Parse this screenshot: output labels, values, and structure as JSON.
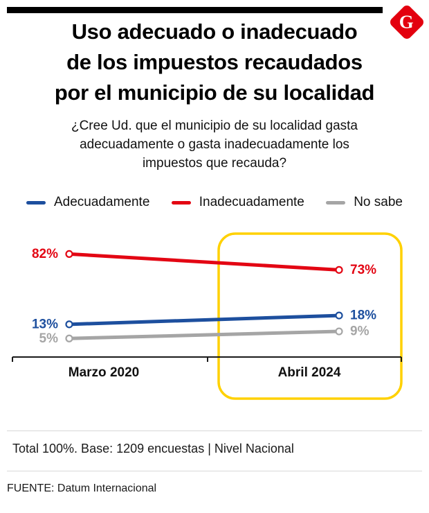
{
  "page": {
    "background": "#ffffff",
    "accent_bar_color": "#000000"
  },
  "logo": {
    "letter": "G",
    "color": "#e3000f"
  },
  "header": {
    "title_lines": [
      "Uso adecuado o inadecuado",
      "de los impuestos recaudados",
      "por el municipio de su localidad"
    ],
    "subtitle_lines": [
      "¿Cree Ud. que el municipio de su localidad gasta",
      "adecuadamente o gasta inadecuadamente los",
      "impuestos que recauda?"
    ]
  },
  "legend": {
    "items": [
      {
        "label": "Adecuadamente",
        "color": "#1d4f9e"
      },
      {
        "label": "Inadecuadamente",
        "color": "#e30613"
      },
      {
        "label": "No sabe",
        "color": "#a5a5a5"
      }
    ]
  },
  "chart_data": {
    "type": "line",
    "title": "Uso adecuado o inadecuado de los impuestos recaudados por el municipio de su localidad",
    "subtitle": "¿Cree Ud. que el municipio de su localidad gasta adecuadamente o gasta inadecuadamente los impuestos que recauda?",
    "categories": [
      "Marzo 2020",
      "Abril 2024"
    ],
    "series": [
      {
        "name": "Inadecuadamente",
        "color": "#e30613",
        "values": [
          82,
          73
        ]
      },
      {
        "name": "Adecuadamente",
        "color": "#1d4f9e",
        "values": [
          13,
          18
        ]
      },
      {
        "name": "No sabe",
        "color": "#a5a5a5",
        "values": [
          5,
          9
        ]
      }
    ],
    "value_suffix": "%",
    "ylim": [
      0,
      100
    ],
    "grid": false,
    "legend_position": "top",
    "axis_color": "#1a1a1a",
    "highlight": {
      "category": "Abril 2024",
      "border_color": "#ffd100"
    }
  },
  "footer": {
    "base_note": "Total 100%. Base: 1209 encuestas | Nivel Nacional",
    "source": "FUENTE: Datum Internacional"
  }
}
